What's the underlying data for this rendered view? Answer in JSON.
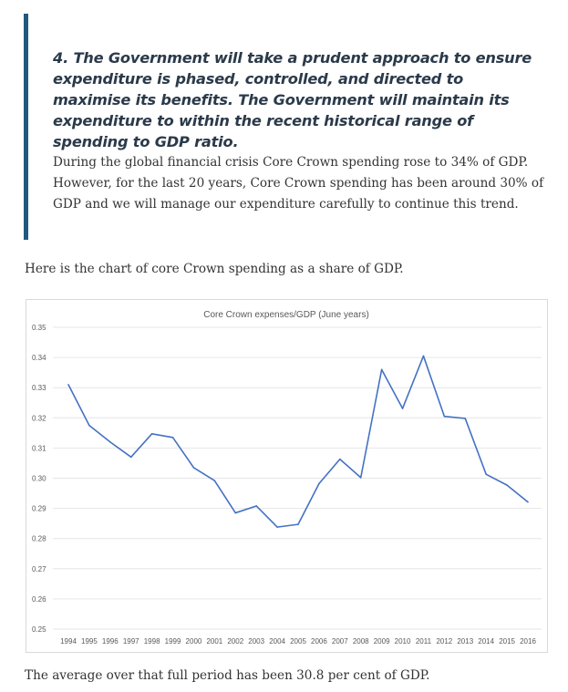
{
  "quote": {
    "heading": "4. The Government will take a prudent approach to ensure expenditure is phased, controlled, and directed to maximise its benefits. The Government will maintain its expenditure to within the recent historical range of spending to GDP ratio.",
    "body": "During the global financial crisis Core Crown spending rose to 34% of GDP. However, for the last 20 years, Core Crown spending has been around 30% of GDP and we will manage our expenditure carefully to continue this trend."
  },
  "intro": "Here is the chart of core Crown spending as a share of GDP.",
  "outro": "The average over that full period has been 30.8 per cent of GDP.",
  "colors": {
    "accent": "#1f5a7e",
    "line": "#4472c4"
  },
  "chart_data": {
    "type": "line",
    "title": "Core Crown expenses/GDP  (June years)",
    "xlabel": "",
    "ylabel": "",
    "ylim": [
      0.25,
      0.35
    ],
    "yticks": [
      "0.25",
      "0.26",
      "0.27",
      "0.28",
      "0.29",
      "0.30",
      "0.31",
      "0.32",
      "0.33",
      "0.34",
      "0.35"
    ],
    "grid": true,
    "categories": [
      "1994",
      "1995",
      "1996",
      "1997",
      "1998",
      "1999",
      "2000",
      "2001",
      "2002",
      "2003",
      "2004",
      "2005",
      "2006",
      "2007",
      "2008",
      "2009",
      "2010",
      "2011",
      "2012",
      "2013",
      "2014",
      "2015",
      "2016"
    ],
    "series": [
      {
        "name": "Core Crown expenses/GDP",
        "values": [
          0.331,
          0.3175,
          0.312,
          0.307,
          0.3147,
          0.3135,
          0.3035,
          0.2992,
          0.2885,
          0.2908,
          0.2838,
          0.2847,
          0.2982,
          0.3063,
          0.3002,
          0.336,
          0.3231,
          0.3405,
          0.3205,
          0.3198,
          0.3013,
          0.2977,
          0.2921
        ]
      }
    ]
  }
}
